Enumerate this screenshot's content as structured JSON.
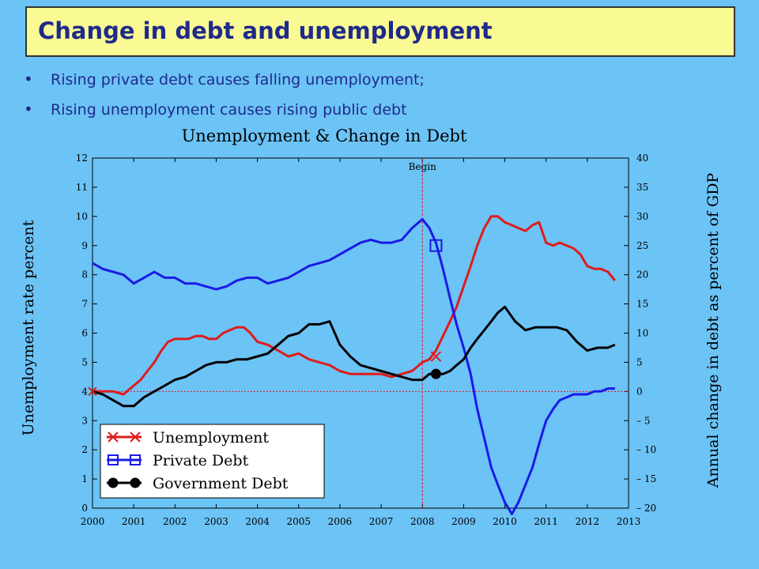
{
  "slide": {
    "title": "Change in debt and unemployment",
    "bullets": [
      "Rising private debt causes falling unemployment;",
      "Rising unemployment causes rising public debt"
    ]
  },
  "colors": {
    "background": "#6cc3f6",
    "title_fill": "#fafa94",
    "title_text": "#1f2a8a",
    "unemployment": "#e01b1b",
    "private_debt": "#1a1ae6",
    "government_debt": "#000000",
    "begin_line": "#e01b1b"
  },
  "chart_data": {
    "type": "line",
    "title": "Unemployment & Change in Debt",
    "ylabel": "Unemployment rate percent",
    "y2label": "Annual change in debt as percent of GDP",
    "xlim": [
      2000,
      2013
    ],
    "ylim": [
      0,
      12
    ],
    "y2lim": [
      -20,
      40
    ],
    "x_ticks": [
      "2000",
      "2001",
      "2002",
      "2003",
      "2004",
      "2005",
      "2006",
      "2007",
      "2008",
      "2009",
      "2010",
      "2011",
      "2012",
      "2013"
    ],
    "y_ticks": [
      "0",
      "1",
      "2",
      "3",
      "4",
      "5",
      "6",
      "7",
      "8",
      "9",
      "10",
      "11",
      "12"
    ],
    "y2_ticks": [
      "40",
      "35",
      "30",
      "25",
      "20",
      "15",
      "10",
      "5",
      "0",
      "– 5",
      "– 10",
      "– 15",
      "– 20"
    ],
    "annotation": {
      "label": "Begin",
      "x": 2008.0
    },
    "legend": {
      "placement": "bottom-left",
      "entries": [
        "Unemployment",
        "Private Debt",
        "Government Debt"
      ]
    },
    "series": [
      {
        "name": "Unemployment",
        "axis": "left",
        "x": [
          2000,
          2000.25,
          2000.5,
          2000.75,
          2001,
          2001.17,
          2001.33,
          2001.5,
          2001.67,
          2001.83,
          2002,
          2002.17,
          2002.33,
          2002.5,
          2002.67,
          2002.83,
          2003,
          2003.17,
          2003.33,
          2003.5,
          2003.67,
          2003.83,
          2004,
          2004.25,
          2004.5,
          2004.75,
          2005,
          2005.25,
          2005.5,
          2005.75,
          2006,
          2006.25,
          2006.5,
          2006.75,
          2007,
          2007.25,
          2007.5,
          2007.75,
          2008,
          2008.17,
          2008.33,
          2008.5,
          2008.67,
          2008.83,
          2009,
          2009.17,
          2009.33,
          2009.5,
          2009.67,
          2009.83,
          2010,
          2010.17,
          2010.33,
          2010.5,
          2010.67,
          2010.83,
          2011,
          2011.17,
          2011.33,
          2011.5,
          2011.67,
          2011.83,
          2012,
          2012.17,
          2012.33,
          2012.5,
          2012.67
        ],
        "y": [
          4.0,
          4.0,
          4.0,
          3.9,
          4.2,
          4.4,
          4.7,
          5.0,
          5.4,
          5.7,
          5.8,
          5.8,
          5.8,
          5.9,
          5.9,
          5.8,
          5.8,
          6.0,
          6.1,
          6.2,
          6.2,
          6.0,
          5.7,
          5.6,
          5.4,
          5.2,
          5.3,
          5.1,
          5.0,
          4.9,
          4.7,
          4.6,
          4.6,
          4.6,
          4.6,
          4.5,
          4.6,
          4.7,
          5.0,
          5.1,
          5.4,
          5.9,
          6.4,
          6.9,
          7.6,
          8.3,
          9.0,
          9.6,
          10.0,
          10.0,
          9.8,
          9.7,
          9.6,
          9.5,
          9.7,
          9.8,
          9.1,
          9.0,
          9.1,
          9.0,
          8.9,
          8.7,
          8.3,
          8.2,
          8.2,
          8.1,
          7.8
        ]
      },
      {
        "name": "Private Debt",
        "axis": "right",
        "x": [
          2000,
          2000.25,
          2000.5,
          2000.75,
          2001,
          2001.25,
          2001.5,
          2001.75,
          2002,
          2002.25,
          2002.5,
          2002.75,
          2003,
          2003.25,
          2003.5,
          2003.75,
          2004,
          2004.25,
          2004.5,
          2004.75,
          2005,
          2005.25,
          2005.5,
          2005.75,
          2006,
          2006.25,
          2006.5,
          2006.75,
          2007,
          2007.25,
          2007.5,
          2007.75,
          2008,
          2008.17,
          2008.33,
          2008.5,
          2008.67,
          2008.83,
          2009,
          2009.17,
          2009.33,
          2009.5,
          2009.67,
          2009.83,
          2010,
          2010.17,
          2010.33,
          2010.5,
          2010.67,
          2010.83,
          2011,
          2011.17,
          2011.33,
          2011.5,
          2011.67,
          2011.83,
          2012,
          2012.17,
          2012.33,
          2012.5,
          2012.67
        ],
        "y": [
          22,
          21,
          20.5,
          20,
          18.5,
          19.5,
          20.5,
          19.5,
          19.5,
          18.5,
          18.5,
          18,
          17.5,
          18,
          19,
          19.5,
          19.5,
          18.5,
          19,
          19.5,
          20.5,
          21.5,
          22,
          22.5,
          23.5,
          24.5,
          25.5,
          26,
          25.5,
          25.5,
          26,
          28,
          29.5,
          28,
          25.5,
          21,
          16,
          11.5,
          7.5,
          3,
          -3,
          -8,
          -13,
          -16,
          -19,
          -21,
          -19,
          -16,
          -13,
          -9,
          -5,
          -3,
          -1.5,
          -1,
          -0.5,
          -0.5,
          -0.5,
          0,
          0,
          0.5,
          0.5
        ]
      },
      {
        "name": "Government Debt",
        "axis": "right",
        "x": [
          2000,
          2000.25,
          2000.5,
          2000.75,
          2001,
          2001.25,
          2001.5,
          2001.75,
          2002,
          2002.25,
          2002.5,
          2002.75,
          2003,
          2003.25,
          2003.5,
          2003.75,
          2004,
          2004.25,
          2004.5,
          2004.75,
          2005,
          2005.25,
          2005.5,
          2005.75,
          2006,
          2006.25,
          2006.5,
          2006.75,
          2007,
          2007.25,
          2007.5,
          2007.75,
          2008,
          2008.17,
          2008.33,
          2008.5,
          2008.67,
          2008.83,
          2009,
          2009.17,
          2009.33,
          2009.5,
          2009.67,
          2009.83,
          2010,
          2010.25,
          2010.5,
          2010.75,
          2011,
          2011.25,
          2011.5,
          2011.75,
          2012,
          2012.25,
          2012.5,
          2012.67
        ],
        "y": [
          0,
          -0.5,
          -1.5,
          -2.5,
          -2.5,
          -1,
          0,
          1,
          2,
          2.5,
          3.5,
          4.5,
          5,
          5,
          5.5,
          5.5,
          6,
          6.5,
          8,
          9.5,
          10,
          11.5,
          11.5,
          12,
          8,
          6,
          4.5,
          4,
          3.5,
          3,
          2.5,
          2,
          2,
          3,
          3,
          3,
          3.5,
          4.5,
          5.5,
          7.5,
          9,
          10.5,
          12,
          13.5,
          14.5,
          12,
          10.5,
          11,
          11,
          11,
          10.5,
          8.5,
          7,
          7.5,
          7.5,
          8
        ]
      }
    ],
    "markers": [
      {
        "series": "Unemployment",
        "x": 2008.33,
        "y": 5.2
      },
      {
        "series": "Private Debt",
        "x": 2008.33,
        "y": 25
      },
      {
        "series": "Government Debt",
        "x": 2008.33,
        "y": 3
      }
    ]
  }
}
